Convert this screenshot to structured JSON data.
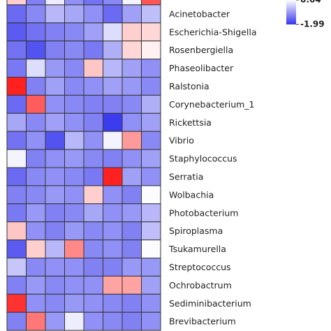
{
  "chart_data": {
    "type": "heatmap",
    "rows": [
      null,
      "Acinetobacter",
      "Escherichia-Shigella",
      "Rosenbergiella",
      "Phaseolibacter",
      "Ralstonia",
      "Corynebacterium_1",
      "Rickettsia",
      "Vibrio",
      "Staphylococcus",
      "Serratia",
      "Wolbachia",
      "Photobacterium",
      "Spiroplasma",
      "Tsukamurella",
      "Streptococcus",
      "Ochrobactrum",
      "Sediminibacterium",
      "Brevibacterium"
    ],
    "values": [
      [
        1.2,
        -1.0,
        0.4,
        -0.8,
        -1.2,
        -0.9,
        0.5,
        2.6
      ],
      [
        -1.3,
        -0.9,
        -0.3,
        -0.5,
        -0.8,
        -1.3,
        -0.6,
        -0.2
      ],
      [
        -1.5,
        -1.2,
        -1.0,
        -0.9,
        -0.6,
        0.2,
        1.2,
        1.1
      ],
      [
        -1.2,
        -1.6,
        -1.0,
        -0.9,
        -1.1,
        -0.4,
        1.1,
        0.8
      ],
      [
        -1.1,
        0.2,
        -0.7,
        -0.9,
        1.3,
        -0.3,
        -0.6,
        -0.8
      ],
      [
        3.2,
        -1.0,
        -0.6,
        -0.9,
        -0.8,
        -0.6,
        -0.7,
        -0.9
      ],
      [
        -1.3,
        2.5,
        -0.8,
        -0.9,
        -1.0,
        -1.0,
        -0.9,
        -0.4
      ],
      [
        -0.5,
        -0.9,
        -0.6,
        -0.8,
        -1.0,
        -1.9,
        -0.8,
        -0.6
      ],
      [
        -1.2,
        -0.8,
        -1.6,
        -0.3,
        -0.8,
        0.5,
        1.8,
        -0.9
      ],
      [
        0.5,
        -1.0,
        -0.8,
        -0.7,
        -0.9,
        -1.0,
        -0.8,
        -0.6
      ],
      [
        -1.3,
        -0.9,
        -0.8,
        -0.9,
        -1.1,
        3.2,
        -0.6,
        -0.8
      ],
      [
        -1.0,
        -0.9,
        -0.7,
        -0.8,
        1.2,
        -0.8,
        -1.0,
        0.6
      ],
      [
        -1.1,
        -0.7,
        -1.0,
        -0.9,
        -0.5,
        -0.8,
        -0.7,
        -0.3
      ],
      [
        1.3,
        -0.8,
        -1.0,
        -0.7,
        -0.9,
        -0.8,
        -1.0,
        -0.2
      ],
      [
        -1.5,
        1.2,
        -0.3,
        2.0,
        -0.9,
        -0.8,
        -1.0,
        0.6
      ],
      [
        -0.1,
        -0.9,
        -0.8,
        -0.8,
        -1.0,
        -1.0,
        -0.7,
        -0.7
      ],
      [
        -1.0,
        -0.7,
        -0.9,
        -0.8,
        -0.8,
        1.7,
        1.7,
        -0.6
      ],
      [
        3.0,
        -0.8,
        -0.9,
        -0.7,
        -0.8,
        -0.9,
        -1.0,
        -0.8
      ],
      [
        -1.0,
        2.2,
        -0.7,
        0.4,
        -0.8,
        -0.9,
        -1.0,
        -0.8
      ]
    ],
    "colorbar_ticks": [
      0.64,
      -1.99
    ],
    "colors": [
      "#3535ee",
      "#ffffff",
      "#ff1a1a"
    ]
  }
}
